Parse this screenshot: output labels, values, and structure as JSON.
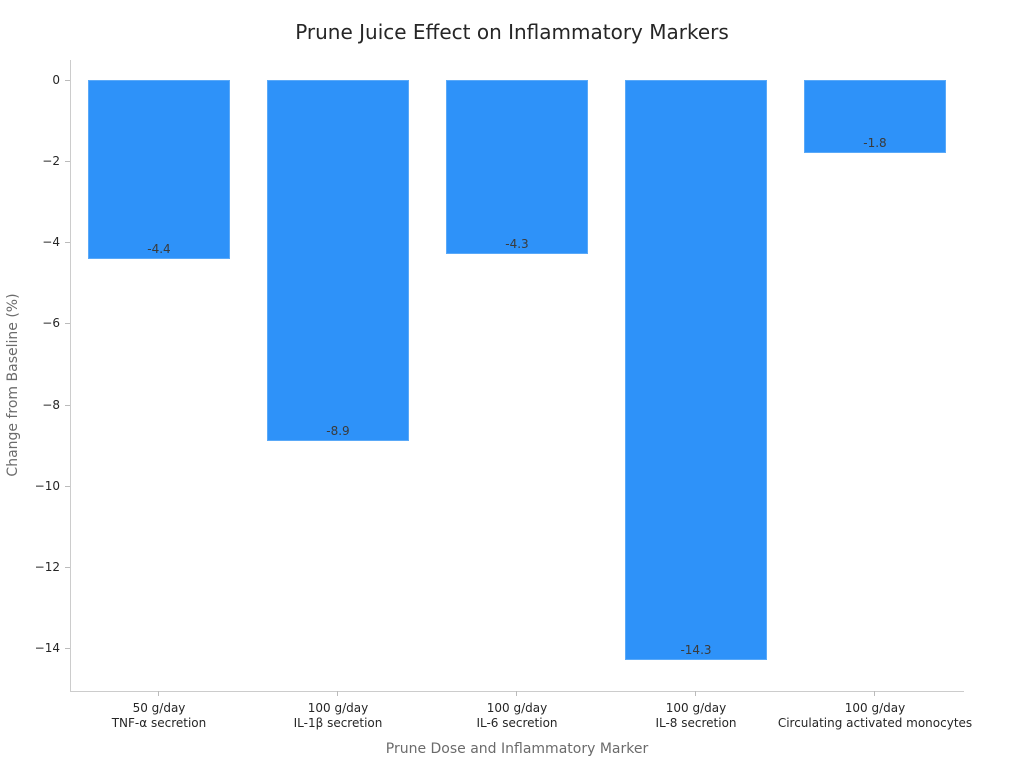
{
  "chart_data": {
    "type": "bar",
    "title": "Prune Juice Effect on Inflammatory Markers",
    "xlabel": "Prune Dose and Inflammatory Marker",
    "ylabel": "Change from Baseline (%)",
    "categories": [
      {
        "dose": "50 g/day",
        "marker": "TNF-α secretion"
      },
      {
        "dose": "100 g/day",
        "marker": "IL-1β secretion"
      },
      {
        "dose": "100 g/day",
        "marker": "IL-6 secretion"
      },
      {
        "dose": "100 g/day",
        "marker": "IL-8 secretion"
      },
      {
        "dose": "100 g/day",
        "marker": "Circulating activated monocytes"
      }
    ],
    "values": [
      -4.4,
      -8.9,
      -4.3,
      -14.3,
      -1.8
    ],
    "value_labels": [
      "-4.4",
      "-8.9",
      "-4.3",
      "-14.3",
      "-1.8"
    ],
    "yticks": [
      0,
      -2,
      -4,
      -6,
      -8,
      -10,
      -12,
      -14
    ],
    "ytick_labels": [
      "0",
      "−2",
      "−4",
      "−6",
      "−8",
      "−10",
      "−12",
      "−14"
    ],
    "ylim": [
      -15.06,
      0
    ],
    "grid": false,
    "legend": null,
    "colors": {
      "bar": "#2e92f9",
      "axis": "#cccccc",
      "text": "#262626",
      "axis_label": "#6b6b6b"
    }
  }
}
